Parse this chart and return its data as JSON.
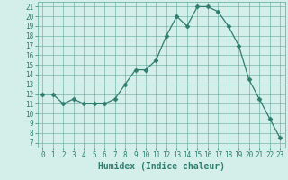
{
  "x": [
    0,
    1,
    2,
    3,
    4,
    5,
    6,
    7,
    8,
    9,
    10,
    11,
    12,
    13,
    14,
    15,
    16,
    17,
    18,
    19,
    20,
    21,
    22,
    23
  ],
  "y": [
    12,
    12,
    11,
    11.5,
    11,
    11,
    11,
    11.5,
    13,
    14.5,
    14.5,
    15.5,
    18,
    20,
    19,
    21,
    21,
    20.5,
    19,
    17,
    13.5,
    11.5,
    9.5,
    7.5
  ],
  "xlabel": "Humidex (Indice chaleur)",
  "line_color": "#2e7d6e",
  "marker": "D",
  "marker_size": 2.5,
  "bg_color": "#d4eeea",
  "grid_color": "#5da89a",
  "xlim": [
    -0.5,
    23.5
  ],
  "ylim": [
    6.5,
    21.5
  ],
  "yticks": [
    7,
    8,
    9,
    10,
    11,
    12,
    13,
    14,
    15,
    16,
    17,
    18,
    19,
    20,
    21
  ],
  "xticks": [
    0,
    1,
    2,
    3,
    4,
    5,
    6,
    7,
    8,
    9,
    10,
    11,
    12,
    13,
    14,
    15,
    16,
    17,
    18,
    19,
    20,
    21,
    22,
    23
  ],
  "tick_fontsize": 5.5,
  "xlabel_fontsize": 7
}
